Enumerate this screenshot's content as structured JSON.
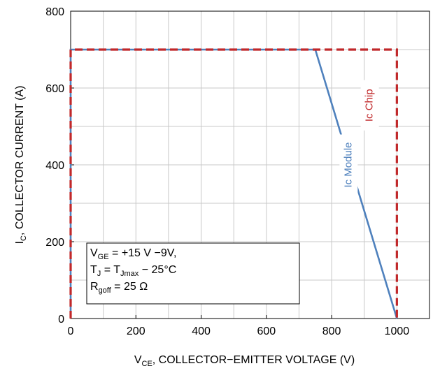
{
  "chart_data": {
    "type": "line",
    "title": "",
    "xlabel": {
      "main": "V",
      "sub": "CE",
      "rest": ", COLLECTOR−EMITTER VOLTAGE (V)"
    },
    "ylabel": {
      "main": "I",
      "sub": "C",
      "rest": ", COLLECTOR CURRENT (A)"
    },
    "xlim": [
      0,
      1100
    ],
    "ylim": [
      0,
      800
    ],
    "xticks": [
      0,
      200,
      400,
      600,
      800,
      1000
    ],
    "yticks": [
      0,
      200,
      400,
      600,
      800
    ],
    "xtick_labels": [
      "0",
      "200",
      "400",
      "600",
      "800",
      "1000"
    ],
    "ytick_labels": [
      "0",
      "200",
      "400",
      "600",
      "800"
    ],
    "grid": true,
    "series": [
      {
        "name": "Ic Module",
        "color": "#4f81bd",
        "style": "solid",
        "x": [
          0,
          0,
          750,
          1000
        ],
        "y": [
          0,
          700,
          700,
          0
        ]
      },
      {
        "name": "Ic Chip",
        "color": "#c0282a",
        "style": "dashed",
        "x": [
          0,
          0,
          1000,
          1000
        ],
        "y": [
          0,
          700,
          700,
          0
        ]
      }
    ],
    "annotations": [
      {
        "id": "module",
        "text": "Ic Module",
        "color": "#4f81bd"
      },
      {
        "id": "chip",
        "text": "Ic Chip",
        "color": "#c0282a"
      }
    ],
    "conditions": [
      [
        {
          "t": "V",
          "sub": false
        },
        {
          "t": "GE",
          "sub": true
        },
        {
          "t": " = +15 V −9V,",
          "sub": false
        }
      ],
      [
        {
          "t": "T",
          "sub": false
        },
        {
          "t": "J",
          "sub": true
        },
        {
          "t": " = T",
          "sub": false
        },
        {
          "t": "Jmax",
          "sub": true
        },
        {
          "t": " − 25°C",
          "sub": false
        }
      ],
      [
        {
          "t": "R",
          "sub": false
        },
        {
          "t": "goff",
          "sub": true
        },
        {
          "t": " = 25 Ω",
          "sub": false
        }
      ]
    ]
  }
}
